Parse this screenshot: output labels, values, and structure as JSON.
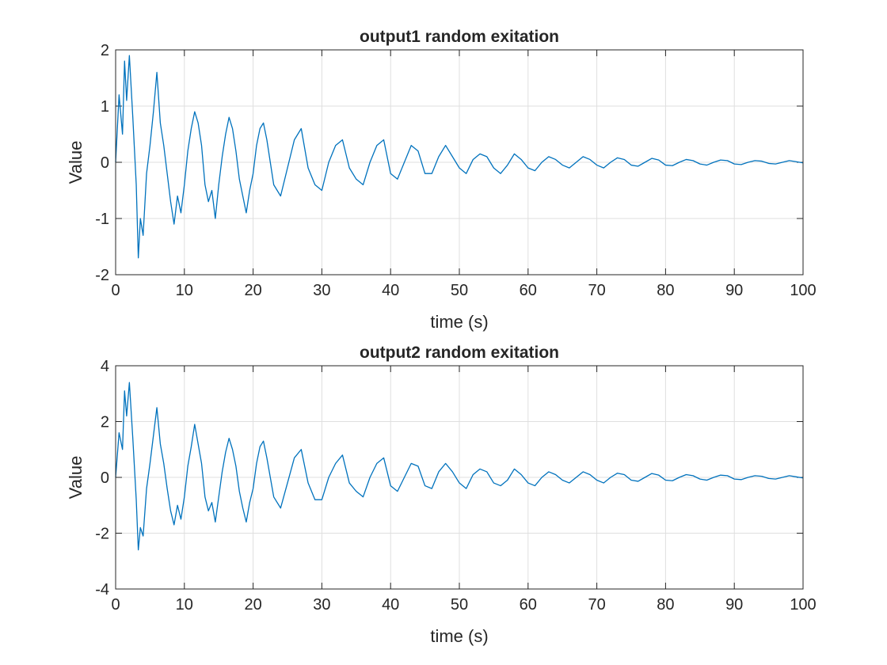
{
  "chart_data": [
    {
      "type": "line",
      "title": "output1 random exitation",
      "xlabel": "time (s)",
      "ylabel": "Value",
      "xlim": [
        0,
        100
      ],
      "ylim": [
        -2,
        2
      ],
      "xticks": [
        0,
        10,
        20,
        30,
        40,
        50,
        60,
        70,
        80,
        90,
        100
      ],
      "yticks": [
        -2,
        -1,
        0,
        1,
        2
      ],
      "grid": true,
      "series": [
        {
          "color": "#0072BD",
          "x": [
            0,
            0.5,
            1,
            1.3,
            1.6,
            2,
            2.5,
            3,
            3.3,
            3.6,
            4,
            4.5,
            5,
            5.5,
            6,
            6.5,
            7,
            7.5,
            8,
            8.5,
            9,
            9.5,
            10,
            10.5,
            11,
            11.5,
            12,
            12.5,
            13,
            13.5,
            14,
            14.5,
            15,
            15.5,
            16,
            16.5,
            17,
            17.5,
            18,
            18.5,
            19,
            19.5,
            20,
            20.5,
            21,
            21.5,
            22,
            23,
            24,
            25,
            26,
            27,
            28,
            29,
            30,
            31,
            32,
            33,
            34,
            35,
            36,
            37,
            38,
            39,
            40,
            41,
            42,
            43,
            44,
            45,
            46,
            47,
            48,
            49,
            50,
            51,
            52,
            53,
            54,
            55,
            56,
            57,
            58,
            59,
            60,
            61,
            62,
            63,
            64,
            65,
            66,
            67,
            68,
            69,
            70,
            71,
            72,
            73,
            74,
            75,
            76,
            77,
            78,
            79,
            80,
            81,
            82,
            83,
            84,
            85,
            86,
            87,
            88,
            89,
            90,
            91,
            92,
            93,
            94,
            95,
            96,
            97,
            98,
            99,
            100
          ],
          "y": [
            0,
            1.2,
            0.5,
            1.8,
            1.1,
            1.9,
            0.8,
            -0.4,
            -1.7,
            -1.0,
            -1.3,
            -0.2,
            0.3,
            0.9,
            1.6,
            0.7,
            0.3,
            -0.2,
            -0.7,
            -1.1,
            -0.6,
            -0.9,
            -0.4,
            0.2,
            0.6,
            0.9,
            0.7,
            0.3,
            -0.4,
            -0.7,
            -0.5,
            -1.0,
            -0.4,
            0.1,
            0.5,
            0.8,
            0.6,
            0.2,
            -0.3,
            -0.6,
            -0.9,
            -0.5,
            -0.2,
            0.3,
            0.6,
            0.7,
            0.4,
            -0.4,
            -0.6,
            -0.1,
            0.4,
            0.6,
            -0.1,
            -0.4,
            -0.5,
            0.0,
            0.3,
            0.4,
            -0.1,
            -0.3,
            -0.4,
            0.0,
            0.3,
            0.4,
            -0.2,
            -0.3,
            0.0,
            0.3,
            0.2,
            -0.2,
            -0.2,
            0.1,
            0.3,
            0.1,
            -0.1,
            -0.2,
            0.05,
            0.15,
            0.1,
            -0.1,
            -0.2,
            -0.05,
            0.15,
            0.05,
            -0.1,
            -0.15,
            0.0,
            0.1,
            0.05,
            -0.05,
            -0.1,
            0.0,
            0.1,
            0.05,
            -0.05,
            -0.1,
            0.0,
            0.08,
            0.05,
            -0.05,
            -0.07,
            0.0,
            0.07,
            0.04,
            -0.05,
            -0.06,
            0.0,
            0.05,
            0.03,
            -0.03,
            -0.05,
            0.0,
            0.04,
            0.03,
            -0.03,
            -0.04,
            0.0,
            0.03,
            0.02,
            -0.02,
            -0.03,
            0.0,
            0.03,
            0.01,
            -0.01
          ]
        }
      ]
    },
    {
      "type": "line",
      "title": "output2 random exitation",
      "xlabel": "time (s)",
      "ylabel": "Value",
      "xlim": [
        0,
        100
      ],
      "ylim": [
        -4,
        4
      ],
      "xticks": [
        0,
        10,
        20,
        30,
        40,
        50,
        60,
        70,
        80,
        90,
        100
      ],
      "yticks": [
        -4,
        -2,
        0,
        2,
        4
      ],
      "grid": true,
      "series": [
        {
          "color": "#0072BD",
          "x": [
            0,
            0.5,
            1,
            1.3,
            1.6,
            2,
            2.5,
            3,
            3.3,
            3.6,
            4,
            4.5,
            5,
            5.5,
            6,
            6.5,
            7,
            7.5,
            8,
            8.5,
            9,
            9.5,
            10,
            10.5,
            11,
            11.5,
            12,
            12.5,
            13,
            13.5,
            14,
            14.5,
            15,
            15.5,
            16,
            16.5,
            17,
            17.5,
            18,
            18.5,
            19,
            19.5,
            20,
            20.5,
            21,
            21.5,
            22,
            23,
            24,
            25,
            26,
            27,
            28,
            29,
            30,
            31,
            32,
            33,
            34,
            35,
            36,
            37,
            38,
            39,
            40,
            41,
            42,
            43,
            44,
            45,
            46,
            47,
            48,
            49,
            50,
            51,
            52,
            53,
            54,
            55,
            56,
            57,
            58,
            59,
            60,
            61,
            62,
            63,
            64,
            65,
            66,
            67,
            68,
            69,
            70,
            71,
            72,
            73,
            74,
            75,
            76,
            77,
            78,
            79,
            80,
            81,
            82,
            83,
            84,
            85,
            86,
            87,
            88,
            89,
            90,
            91,
            92,
            93,
            94,
            95,
            96,
            97,
            98,
            99,
            100
          ],
          "y": [
            0,
            1.6,
            1.0,
            3.1,
            2.2,
            3.4,
            1.4,
            -0.8,
            -2.6,
            -1.8,
            -2.1,
            -0.4,
            0.5,
            1.5,
            2.5,
            1.2,
            0.5,
            -0.4,
            -1.2,
            -1.7,
            -1.0,
            -1.5,
            -0.7,
            0.4,
            1.1,
            1.9,
            1.2,
            0.5,
            -0.7,
            -1.2,
            -0.9,
            -1.6,
            -0.7,
            0.2,
            0.9,
            1.4,
            1.0,
            0.4,
            -0.5,
            -1.1,
            -1.6,
            -0.9,
            -0.4,
            0.5,
            1.1,
            1.3,
            0.7,
            -0.7,
            -1.1,
            -0.2,
            0.7,
            1.0,
            -0.2,
            -0.8,
            -0.8,
            0.0,
            0.5,
            0.8,
            -0.2,
            -0.5,
            -0.7,
            0.0,
            0.5,
            0.7,
            -0.3,
            -0.5,
            0.0,
            0.5,
            0.4,
            -0.3,
            -0.4,
            0.2,
            0.5,
            0.2,
            -0.2,
            -0.4,
            0.1,
            0.3,
            0.2,
            -0.2,
            -0.3,
            -0.1,
            0.3,
            0.1,
            -0.2,
            -0.3,
            0.0,
            0.2,
            0.1,
            -0.1,
            -0.2,
            0.0,
            0.2,
            0.1,
            -0.1,
            -0.2,
            0.0,
            0.15,
            0.1,
            -0.1,
            -0.14,
            0.0,
            0.14,
            0.08,
            -0.1,
            -0.12,
            0.0,
            0.1,
            0.06,
            -0.06,
            -0.1,
            0.0,
            0.08,
            0.06,
            -0.06,
            -0.08,
            0.0,
            0.06,
            0.04,
            -0.04,
            -0.06,
            0.0,
            0.06,
            0.02,
            -0.02
          ]
        }
      ]
    }
  ]
}
